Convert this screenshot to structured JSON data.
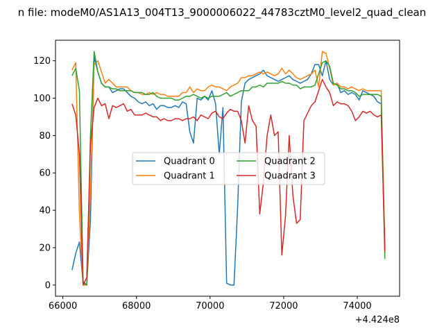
{
  "chart_data": {
    "type": "line",
    "title": "n file: modeM0/AS1A13_004T13_9000006022_44783cztM0_level2_quad_clean",
    "xlabel": "",
    "ylabel": "",
    "x_offset_label": "+4.424e8",
    "xlim": [
      65800,
      75150
    ],
    "ylim": [
      -6,
      131
    ],
    "x_ticks": [
      66000,
      68000,
      70000,
      72000,
      74000
    ],
    "x_tick_labels": [
      "66000",
      "68000",
      "70000",
      "72000",
      "74000"
    ],
    "y_ticks": [
      0,
      20,
      40,
      60,
      80,
      100,
      120
    ],
    "y_tick_labels": [
      "0",
      "20",
      "40",
      "60",
      "80",
      "100",
      "120"
    ],
    "grid": false,
    "legend": {
      "placement": "center",
      "columns": 2
    },
    "colors": [
      "#1f77b4",
      "#ff7f0e",
      "#2ca02c",
      "#d62728"
    ],
    "series": [
      {
        "name": "Quadrant 0",
        "x": [
          66250,
          66350,
          66450,
          66550,
          66650,
          66750,
          66850,
          66950,
          67050,
          67150,
          67250,
          67350,
          67450,
          67550,
          67650,
          67750,
          67850,
          67950,
          68050,
          68150,
          68250,
          68350,
          68450,
          68550,
          68650,
          68750,
          68850,
          68950,
          69050,
          69150,
          69250,
          69350,
          69450,
          69550,
          69650,
          69750,
          69850,
          69950,
          70050,
          70150,
          70250,
          70350,
          70450,
          70550,
          70650,
          70750,
          70850,
          70950,
          71050,
          71150,
          71250,
          71350,
          71450,
          71550,
          71650,
          71750,
          71850,
          71950,
          72050,
          72150,
          72250,
          72350,
          72450,
          72550,
          72650,
          72750,
          72850,
          72950,
          73050,
          73150,
          73250,
          73350,
          73450,
          73550,
          73650,
          73750,
          73850,
          73950,
          74050,
          74150,
          74250,
          74350,
          74450,
          74550,
          74650,
          74750
        ],
        "values": [
          8,
          17,
          23,
          1,
          0,
          35,
          122,
          114,
          108,
          106,
          106,
          103,
          104,
          105,
          105,
          103,
          101,
          100,
          98,
          97,
          98,
          96,
          97,
          94,
          96,
          96,
          95,
          95,
          96,
          95,
          98,
          97,
          82,
          76,
          100,
          99,
          101,
          99,
          104,
          97,
          70,
          95,
          1,
          0,
          0,
          42,
          98,
          108,
          110,
          111,
          112,
          113,
          115,
          112,
          111,
          110,
          109,
          110,
          111,
          112,
          110,
          109,
          108,
          109,
          110,
          113,
          118,
          118,
          112,
          120,
          110,
          107,
          108,
          103,
          104,
          102,
          103,
          102,
          99,
          104,
          103,
          102,
          101,
          98,
          97,
          17
        ]
      },
      {
        "name": "Quadrant 1",
        "x": [
          66250,
          66350,
          66450,
          66550,
          66650,
          66750,
          66850,
          66950,
          67050,
          67150,
          67250,
          67350,
          67450,
          67550,
          67650,
          67750,
          67850,
          67950,
          68050,
          68150,
          68250,
          68350,
          68450,
          68550,
          68650,
          68750,
          68850,
          68950,
          69050,
          69150,
          69250,
          69350,
          69450,
          69550,
          69650,
          69750,
          69850,
          69950,
          70050,
          70150,
          70250,
          70350,
          70450,
          70550,
          70650,
          70750,
          70850,
          70950,
          71050,
          71150,
          71250,
          71350,
          71450,
          71550,
          71650,
          71750,
          71850,
          71950,
          72050,
          72150,
          72250,
          72350,
          72450,
          72550,
          72650,
          72750,
          72850,
          72950,
          73050,
          73150,
          73250,
          73350,
          73450,
          73550,
          73650,
          73750,
          73850,
          73950,
          74050,
          74150,
          74250,
          74350,
          74450,
          74550,
          74650,
          74750
        ],
        "values": [
          115,
          119,
          38,
          0,
          0,
          50,
          118,
          120,
          114,
          108,
          110,
          108,
          106,
          106,
          106,
          106,
          104,
          103,
          103,
          102,
          102,
          103,
          102,
          103,
          102,
          102,
          101,
          101,
          101,
          101,
          103,
          103,
          106,
          103,
          105,
          104,
          104,
          106,
          107,
          106,
          106,
          105,
          104,
          106,
          107,
          108,
          111,
          111,
          112,
          112,
          113,
          114,
          113,
          114,
          113,
          112,
          113,
          116,
          113,
          115,
          113,
          111,
          110,
          111,
          112,
          113,
          115,
          106,
          125,
          124,
          116,
          107,
          108,
          106,
          106,
          105,
          106,
          105,
          104,
          105,
          104,
          104,
          104,
          104,
          104,
          21
        ]
      },
      {
        "name": "Quadrant 2",
        "x": [
          66250,
          66350,
          66450,
          66550,
          66650,
          66750,
          66850,
          66950,
          67050,
          67150,
          67250,
          67350,
          67450,
          67550,
          67650,
          67750,
          67850,
          67950,
          68050,
          68150,
          68250,
          68350,
          68450,
          68550,
          68650,
          68750,
          68850,
          68950,
          69050,
          69150,
          69250,
          69350,
          69450,
          69550,
          69650,
          69750,
          69850,
          69950,
          70050,
          70150,
          70250,
          70350,
          70450,
          70550,
          70650,
          70750,
          70850,
          70950,
          71050,
          71150,
          71250,
          71350,
          71450,
          71550,
          71650,
          71750,
          71850,
          71950,
          72050,
          72150,
          72250,
          72350,
          72450,
          72550,
          72650,
          72750,
          72850,
          72950,
          73050,
          73150,
          73250,
          73350,
          73450,
          73550,
          73650,
          73750,
          73850,
          73950,
          74050,
          74150,
          74250,
          74350,
          74450,
          74550,
          74650,
          74750
        ],
        "values": [
          112,
          116,
          104,
          2,
          0,
          80,
          125,
          114,
          108,
          106,
          106,
          105,
          105,
          104,
          104,
          104,
          104,
          103,
          103,
          103,
          102,
          102,
          103,
          101,
          100,
          100,
          100,
          100,
          99,
          99,
          100,
          101,
          101,
          102,
          101,
          100,
          101,
          100,
          101,
          101,
          101,
          102,
          103,
          101,
          102,
          103,
          104,
          104,
          104,
          106,
          106,
          107,
          106,
          108,
          108,
          108,
          108,
          109,
          108,
          108,
          107,
          107,
          105,
          106,
          106,
          106,
          107,
          113,
          119,
          120,
          117,
          108,
          107,
          105,
          105,
          104,
          104,
          103,
          101,
          102,
          102,
          102,
          102,
          102,
          101,
          14
        ]
      },
      {
        "name": "Quadrant 3",
        "x": [
          66250,
          66350,
          66450,
          66550,
          66650,
          66750,
          66850,
          66950,
          67050,
          67150,
          67250,
          67350,
          67450,
          67550,
          67650,
          67750,
          67850,
          67950,
          68050,
          68150,
          68250,
          68350,
          68450,
          68550,
          68650,
          68750,
          68850,
          68950,
          69050,
          69150,
          69250,
          69350,
          69450,
          69550,
          69650,
          69750,
          69850,
          69950,
          70050,
          70150,
          70250,
          70350,
          70450,
          70550,
          70650,
          70750,
          70850,
          70950,
          71050,
          71150,
          71250,
          71350,
          71450,
          71550,
          71650,
          71750,
          71850,
          71950,
          72050,
          72150,
          72250,
          72350,
          72450,
          72550,
          72650,
          72750,
          72850,
          72950,
          73050,
          73150,
          73250,
          73350,
          73450,
          73550,
          73650,
          73750,
          73850,
          73950,
          74050,
          74150,
          74250,
          74350,
          74450,
          74550,
          74650,
          74750
        ],
        "values": [
          97,
          91,
          70,
          0,
          4,
          75,
          95,
          100,
          96,
          97,
          89,
          96,
          95,
          96,
          97,
          93,
          94,
          91,
          91,
          91,
          92,
          91,
          90,
          90,
          88,
          89,
          88,
          88,
          89,
          89,
          88,
          89,
          89,
          90,
          88,
          91,
          90,
          89,
          92,
          93,
          90,
          89,
          92,
          94,
          93,
          93,
          88,
          76,
          96,
          88,
          85,
          38,
          55,
          80,
          91,
          80,
          82,
          16,
          37,
          80,
          48,
          33,
          35,
          88,
          92,
          96,
          98,
          104,
          110,
          106,
          103,
          96,
          98,
          97,
          97,
          96,
          93,
          88,
          90,
          93,
          92,
          93,
          91,
          90,
          91,
          18
        ]
      }
    ]
  }
}
